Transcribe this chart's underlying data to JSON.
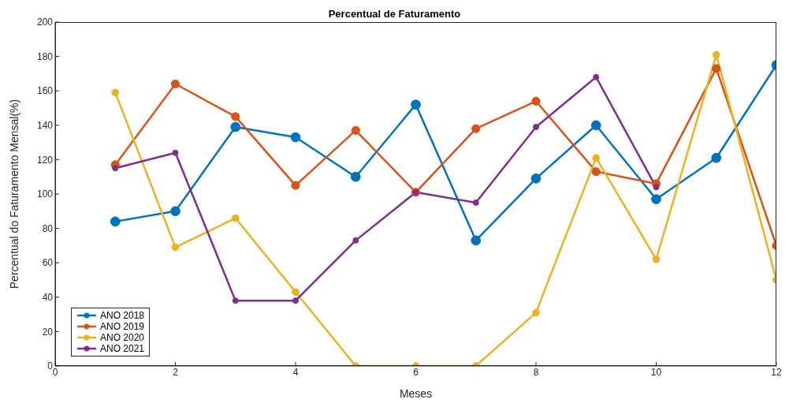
{
  "chart_data": {
    "type": "line",
    "title": "Percentual de Faturamento",
    "xlabel": "Meses",
    "ylabel": "Percentual do Faturamento Mensal(%)",
    "x": [
      1,
      2,
      3,
      4,
      5,
      6,
      7,
      8,
      9,
      10,
      11,
      12
    ],
    "series": [
      {
        "name": "ANO 2018",
        "color": "#0072bd",
        "values": [
          84,
          90,
          139,
          133,
          110,
          152,
          73,
          109,
          140,
          97,
          121,
          175
        ]
      },
      {
        "name": "ANO 2019",
        "color": "#d95319",
        "values": [
          117,
          164,
          145,
          105,
          137,
          101,
          138,
          154,
          113,
          106,
          173,
          70
        ]
      },
      {
        "name": "ANO 2020",
        "color": "#edb120",
        "values": [
          159,
          69,
          86,
          43,
          0,
          0,
          0,
          31,
          121,
          62,
          181,
          50
        ]
      },
      {
        "name": "ANO 2021",
        "color": "#7e2f8e",
        "values": [
          115,
          124,
          38,
          38,
          73,
          101,
          95,
          139,
          168,
          104,
          null,
          null
        ]
      }
    ],
    "xlim": [
      0,
      12
    ],
    "xticks": [
      0,
      2,
      4,
      6,
      8,
      10,
      12
    ],
    "ylim": [
      0,
      200
    ],
    "yticks": [
      0,
      20,
      40,
      60,
      80,
      100,
      120,
      140,
      160,
      180,
      200
    ],
    "grid": false,
    "legend": "bottom left",
    "marker": "circle",
    "line_style": "solid"
  }
}
